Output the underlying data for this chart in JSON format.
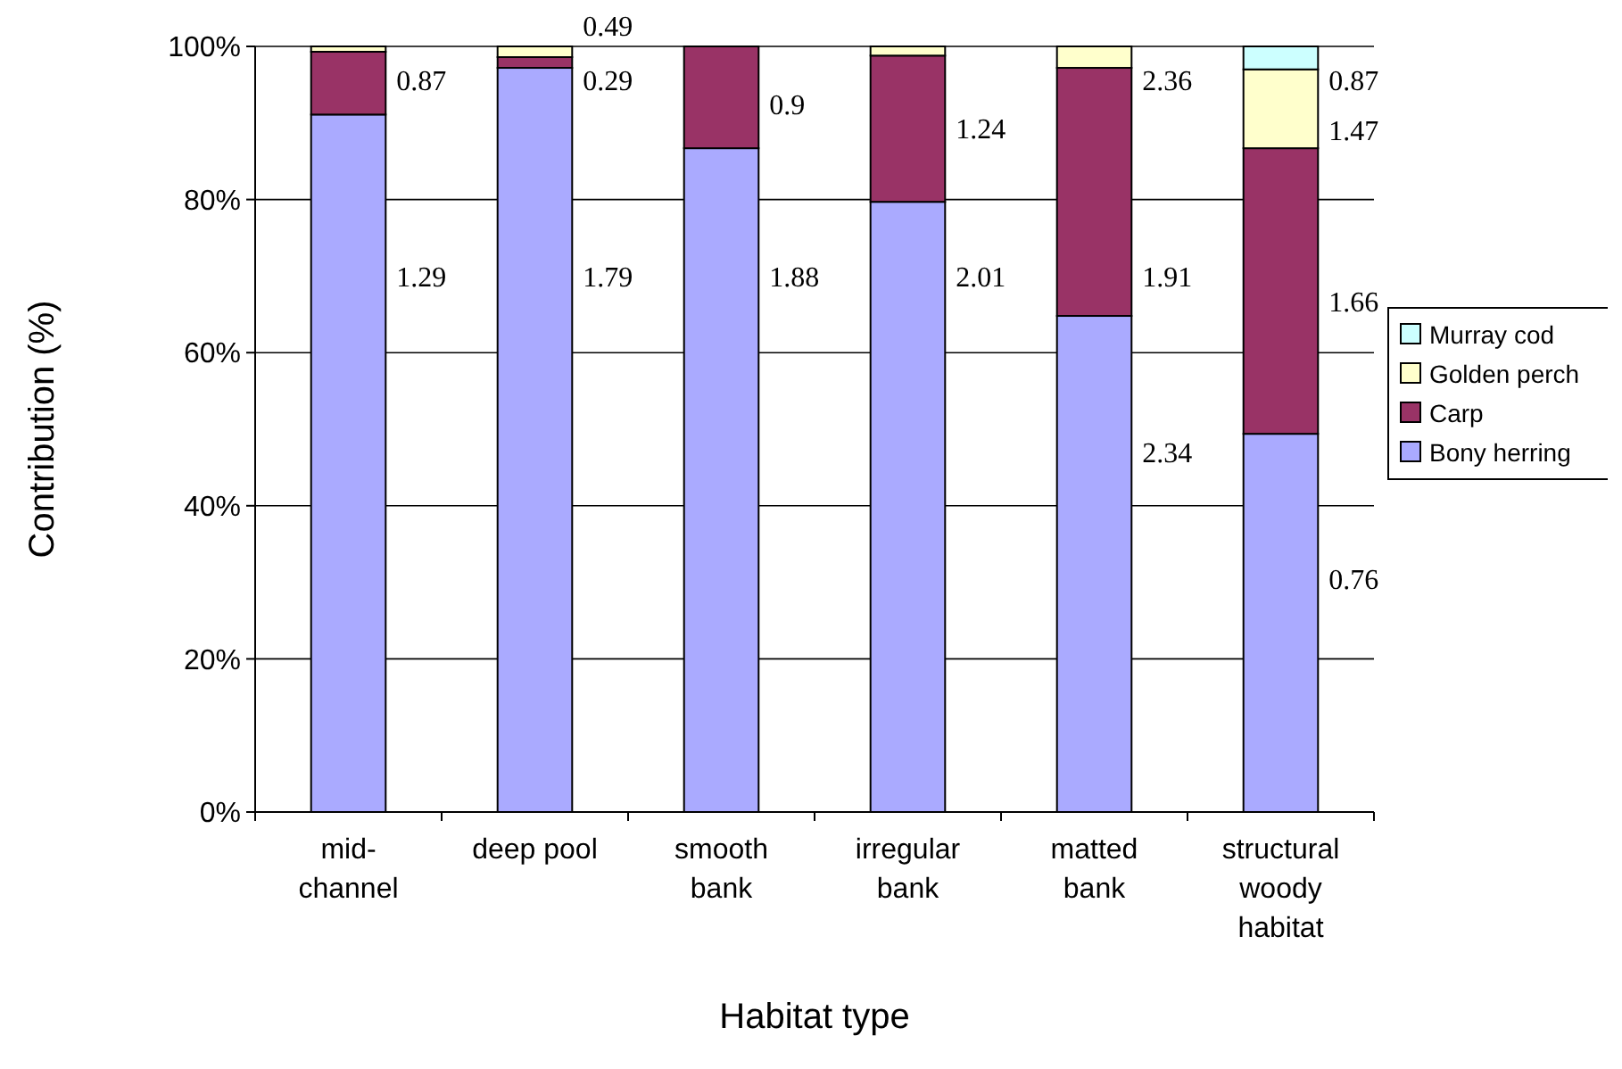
{
  "chart_data": {
    "type": "bar",
    "stacked": true,
    "xlabel": "Habitat type",
    "ylabel": "Contribution (%)",
    "categories": [
      "mid-channel",
      "deep pool",
      "smooth bank",
      "irregular bank",
      "matted bank",
      "structural woody habitat"
    ],
    "series": [
      {
        "name": "Bony herring",
        "color": "#aaaaff",
        "values": [
          91.1,
          97.2,
          86.7,
          79.7,
          64.8,
          49.4
        ]
      },
      {
        "name": "Carp",
        "color": "#993366",
        "values": [
          8.2,
          1.4,
          13.3,
          19.1,
          32.4,
          37.3
        ]
      },
      {
        "name": "Golden perch",
        "color": "#ffffcc",
        "values": [
          0.7,
          1.4,
          0,
          1.2,
          2.8,
          10.3
        ]
      },
      {
        "name": "Murray cod",
        "color": "#ccffff",
        "values": [
          0,
          0,
          0,
          0,
          0,
          3.0
        ]
      }
    ],
    "ylim": [
      0,
      100
    ],
    "yticks": [
      {
        "value": 0,
        "label": "0%"
      },
      {
        "value": 20,
        "label": "20%"
      },
      {
        "value": 40,
        "label": "40%"
      },
      {
        "value": 60,
        "label": "60%"
      },
      {
        "value": 80,
        "label": "80%"
      },
      {
        "value": 100,
        "label": "100%"
      }
    ],
    "grid": "y",
    "legend": "right",
    "annotations": [
      "0.87",
      "1.29",
      "0.49",
      "0.29",
      "1.79",
      "0.9",
      "1.88",
      "1.24",
      "2.01",
      "2.36",
      "1.91",
      "2.34",
      "0.87",
      "1.47",
      "1.66",
      "0.76"
    ]
  }
}
